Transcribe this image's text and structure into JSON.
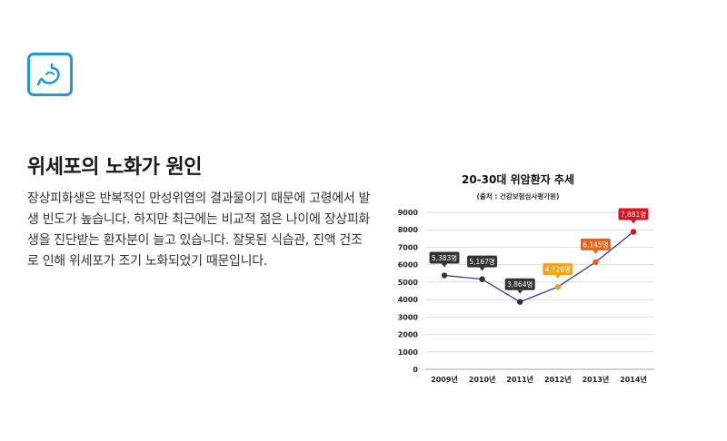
{
  "section": {
    "title": "위세포의 노화가 원인",
    "body": "장상피화생은 반복적인 만성위염의 결과물이기 때문에 고령에서 발생 빈도가 높습니다. 하지만 최근에는 비교적 젊은 나이에 장상피화생을 진단받는 환자분이 늘고 있습니다. 잘못된 식습관, 진액 건조로 인해 위세포가 조기 노화되었기 때문입니다."
  },
  "icon": {
    "name": "stomach-icon",
    "color": "#1e9bcf"
  },
  "chart_data": {
    "type": "line",
    "title": "20-30대 위암환자 추세",
    "subtitle": "(출처 : 건강보험심사평가원)",
    "categories": [
      "2009년",
      "2010년",
      "2011년",
      "2012년",
      "2013년",
      "2014년"
    ],
    "values": [
      5383,
      5167,
      3864,
      4726,
      6145,
      7881
    ],
    "data_labels": [
      "5,383명",
      "5,167명",
      "3,864명",
      "4,726명",
      "6,145명",
      "7,881명"
    ],
    "label_colors": [
      "#333333",
      "#333333",
      "#333333",
      "#f4a21c",
      "#e8611b",
      "#d7141f"
    ],
    "point_colors": [
      "#333333",
      "#333333",
      "#333333",
      "#f4a21c",
      "#e8611b",
      "#d7141f"
    ],
    "line_color": "#2a2f8f",
    "ylim": [
      0,
      9000
    ],
    "yticks": [
      "9000",
      "8000",
      "7000",
      "6000",
      "5000",
      "4000",
      "3000",
      "2000",
      "1000",
      "0"
    ],
    "grid": true
  }
}
